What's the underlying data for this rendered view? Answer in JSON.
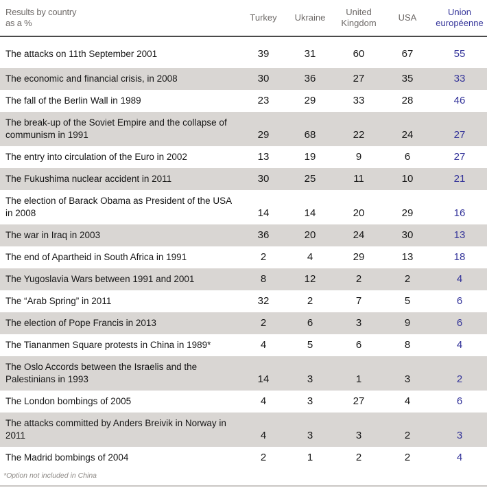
{
  "header": {
    "corner_line1": "Results by country",
    "corner_line2": "as a %",
    "columns": [
      "Turkey",
      "Ukraine",
      "United Kingdom",
      "USA",
      "Union européenne"
    ]
  },
  "footnote": "*Option not included in China",
  "colors": {
    "stripe": "#d9d6d3",
    "header_text": "#6e6a68",
    "eu_blue": "#333399",
    "body_text": "#161616",
    "header_rule": "#4a4a4a"
  },
  "chart_data": {
    "type": "table",
    "title": "Results by country as a %",
    "categories": [
      "The attacks on 11th September 2001",
      "The economic and financial crisis, in 2008",
      "The fall of the Berlin Wall in 1989",
      "The break-up of the Soviet Empire and the collapse of communism in 1991",
      "The entry into circulation of the Euro in 2002",
      "The Fukushima nuclear accident in 2011",
      "The election of Barack Obama as President of the USA in 2008",
      "The war in Iraq in 2003",
      "The end of Apartheid in South Africa in 1991",
      "The Yugoslavia Wars between 1991 and 2001",
      "The “Arab Spring” in 2011",
      "The election of Pope Francis in 2013",
      "The Tiananmen Square protests in China in 1989*",
      "The Oslo Accords between the Israelis and the Palestinians in 1993",
      "The London bombings of 2005",
      "The attacks committed by Anders Breivik in Norway in 2011",
      "The Madrid bombings of 2004"
    ],
    "series": [
      {
        "name": "Turkey",
        "values": [
          39,
          30,
          23,
          29,
          13,
          30,
          14,
          36,
          2,
          8,
          32,
          2,
          4,
          14,
          4,
          4,
          2
        ]
      },
      {
        "name": "Ukraine",
        "values": [
          31,
          36,
          29,
          68,
          19,
          25,
          14,
          20,
          4,
          12,
          2,
          6,
          5,
          3,
          3,
          3,
          1
        ]
      },
      {
        "name": "United Kingdom",
        "values": [
          60,
          27,
          33,
          22,
          9,
          11,
          20,
          24,
          29,
          2,
          7,
          3,
          6,
          1,
          27,
          3,
          2
        ]
      },
      {
        "name": "USA",
        "values": [
          67,
          35,
          28,
          24,
          6,
          10,
          29,
          30,
          13,
          2,
          5,
          9,
          8,
          3,
          4,
          2,
          2
        ]
      },
      {
        "name": "Union européenne",
        "values": [
          55,
          33,
          46,
          27,
          27,
          21,
          16,
          13,
          18,
          4,
          6,
          6,
          4,
          2,
          6,
          3,
          4
        ]
      }
    ],
    "footnote": "*Option not included in China",
    "layout": {
      "grid": false,
      "striped_rows": true,
      "highlight_column": "Union européenne"
    }
  }
}
